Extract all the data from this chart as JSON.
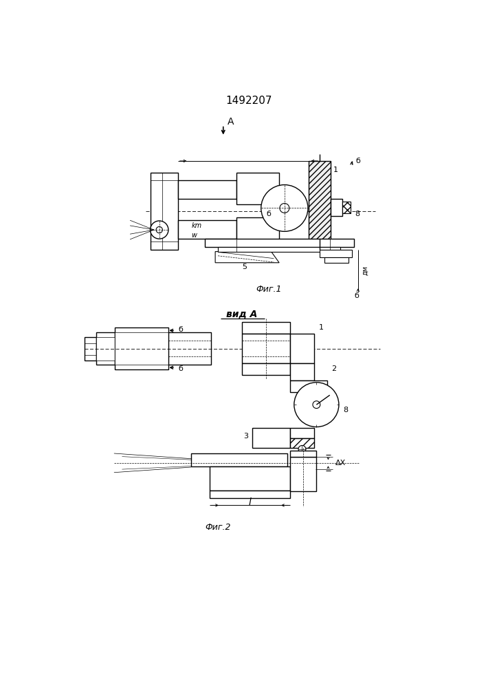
{
  "patent_num": "1492207",
  "fig1_caption": "Фиг.1",
  "fig2_caption": "Фиг.2",
  "view_A_label": "вид А",
  "bg": "#ffffff"
}
